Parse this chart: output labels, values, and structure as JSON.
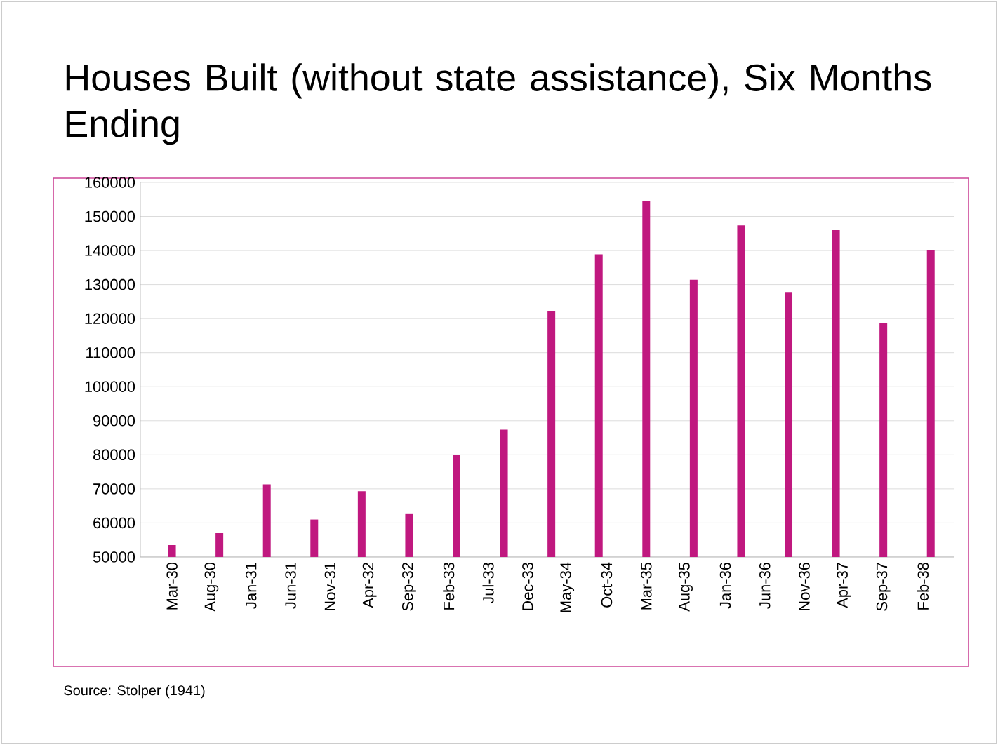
{
  "chart_data": {
    "type": "bar",
    "title": "Houses Built (without state assistance), Six Months Ending",
    "x": [
      "1930-03",
      "1930-09",
      "1931-03",
      "1931-09",
      "1932-03",
      "1932-09",
      "1933-03",
      "1933-09",
      "1934-03",
      "1934-09",
      "1935-03",
      "1935-09",
      "1936-03",
      "1936-09",
      "1937-03",
      "1937-09",
      "1938-03"
    ],
    "values": [
      53500,
      57000,
      71300,
      61000,
      69300,
      62800,
      80000,
      87400,
      122100,
      138900,
      154600,
      131400,
      147400,
      127800,
      146000,
      118700,
      140000
    ],
    "color": "#c0187f",
    "xlim": [
      "1929-11",
      "1938-06"
    ],
    "xticks": [
      {
        "value": "1930-03",
        "label": "Mar-30"
      },
      {
        "value": "1930-08",
        "label": "Aug-30"
      },
      {
        "value": "1931-01",
        "label": "Jan-31"
      },
      {
        "value": "1931-06",
        "label": "Jun-31"
      },
      {
        "value": "1931-11",
        "label": "Nov-31"
      },
      {
        "value": "1932-04",
        "label": "Apr-32"
      },
      {
        "value": "1932-09",
        "label": "Sep-32"
      },
      {
        "value": "1933-02",
        "label": "Feb-33"
      },
      {
        "value": "1933-07",
        "label": "Jul-33"
      },
      {
        "value": "1933-12",
        "label": "Dec-33"
      },
      {
        "value": "1934-05",
        "label": "May-34"
      },
      {
        "value": "1934-10",
        "label": "Oct-34"
      },
      {
        "value": "1935-03",
        "label": "Mar-35"
      },
      {
        "value": "1935-08",
        "label": "Aug-35"
      },
      {
        "value": "1936-01",
        "label": "Jan-36"
      },
      {
        "value": "1936-06",
        "label": "Jun-36"
      },
      {
        "value": "1936-11",
        "label": "Nov-36"
      },
      {
        "value": "1937-04",
        "label": "Apr-37"
      },
      {
        "value": "1937-09",
        "label": "Sep-37"
      },
      {
        "value": "1938-02",
        "label": "Feb-38"
      }
    ],
    "ylim": [
      50000,
      160000
    ],
    "yticks": [
      50000,
      60000,
      70000,
      80000,
      90000,
      100000,
      110000,
      120000,
      130000,
      140000,
      150000,
      160000
    ],
    "grid": "y",
    "annotations": [
      "Source:  Stolper (1941)"
    ]
  }
}
